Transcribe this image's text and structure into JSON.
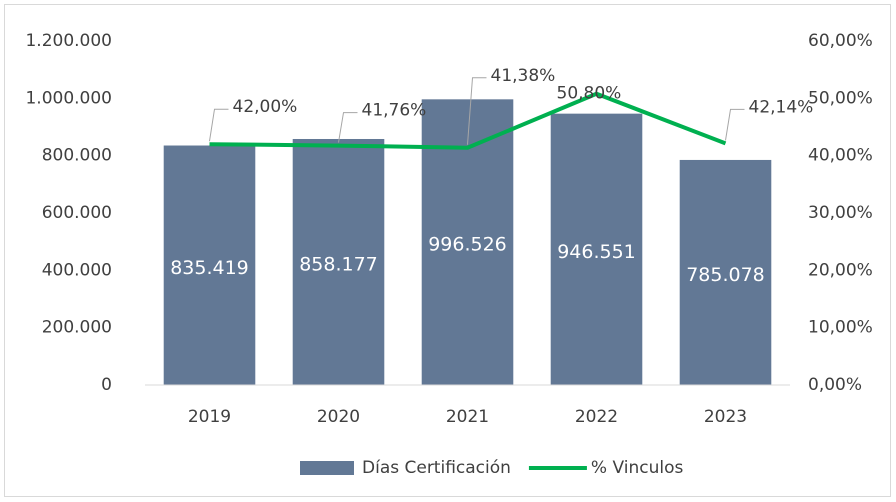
{
  "chart_data": {
    "type": "bar-line",
    "categories": [
      "2019",
      "2020",
      "2021",
      "2022",
      "2023"
    ],
    "series": [
      {
        "name": "Días Certificación",
        "type": "bar",
        "color": "#627895",
        "values": [
          835419,
          858177,
          996526,
          946551,
          785078
        ],
        "value_labels": [
          "835.419",
          "858.177",
          "996.526",
          "946.551",
          "785.078"
        ]
      },
      {
        "name": "% Vinculos",
        "type": "line",
        "axis": "y2",
        "color": "#00b050",
        "values": [
          42.0,
          41.76,
          41.38,
          50.8,
          42.14
        ],
        "value_labels": [
          "42,00%",
          "41,76%",
          "41,38%",
          "50,80%",
          "42,14%"
        ]
      }
    ],
    "ylim": [
      0,
      1200000
    ],
    "yticks": [
      0,
      {
        "value": 200000,
        "label": "200.000"
      },
      {
        "value": 400000,
        "label": "400.000"
      },
      {
        "value": 600000,
        "label": "600.000"
      },
      {
        "value": 800000,
        "label": "800.000"
      },
      {
        "value": 1000000,
        "label": "1.000.000"
      },
      {
        "value": 1200000,
        "label": "1.200.000"
      }
    ],
    "y2lim": [
      0,
      60
    ],
    "y2ticks": [
      {
        "value": 0,
        "label": "0,00%"
      },
      {
        "value": 10,
        "label": "10,00%"
      },
      {
        "value": 20,
        "label": "20,00%"
      },
      {
        "value": 30,
        "label": "30,00%"
      },
      {
        "value": 40,
        "label": "40,00%"
      },
      {
        "value": 50,
        "label": "50,00%"
      },
      {
        "value": 60,
        "label": "60,00%"
      }
    ],
    "grid": false,
    "legend": "bottom"
  }
}
